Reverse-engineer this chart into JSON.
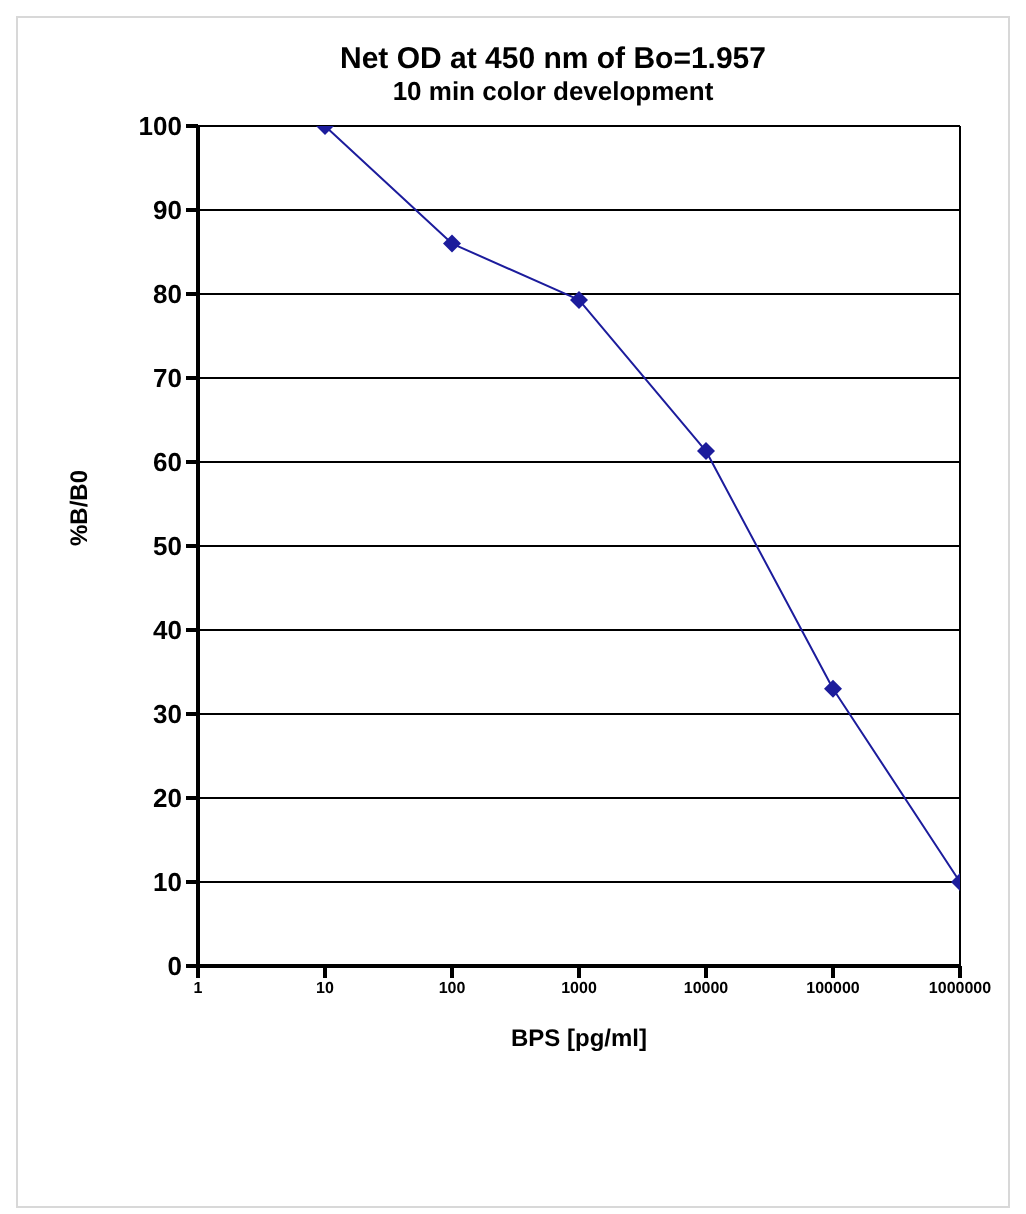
{
  "chart_data": {
    "type": "line",
    "title": "Net OD at 450 nm of Bo=1.957",
    "subtitle": "10 min color development",
    "xlabel": "BPS  [pg/ml]",
    "ylabel": "%B/B0",
    "x": [
      10,
      100,
      1000,
      10000,
      100000,
      1000000
    ],
    "series": [
      {
        "color": "#1c1c9c",
        "values": [
          100,
          86,
          79.3,
          61.3,
          33,
          10
        ]
      }
    ],
    "log": "x",
    "xlim": [
      1,
      1000000
    ],
    "xticks": [
      1,
      10,
      100,
      1000,
      10000,
      100000,
      1000000
    ],
    "ylim": [
      0,
      100
    ],
    "yticks": [
      0,
      10,
      20,
      30,
      40,
      50,
      60,
      70,
      80,
      90,
      100
    ],
    "grid": "y",
    "marker": "diamond",
    "line_style": "solid",
    "legend": false
  }
}
